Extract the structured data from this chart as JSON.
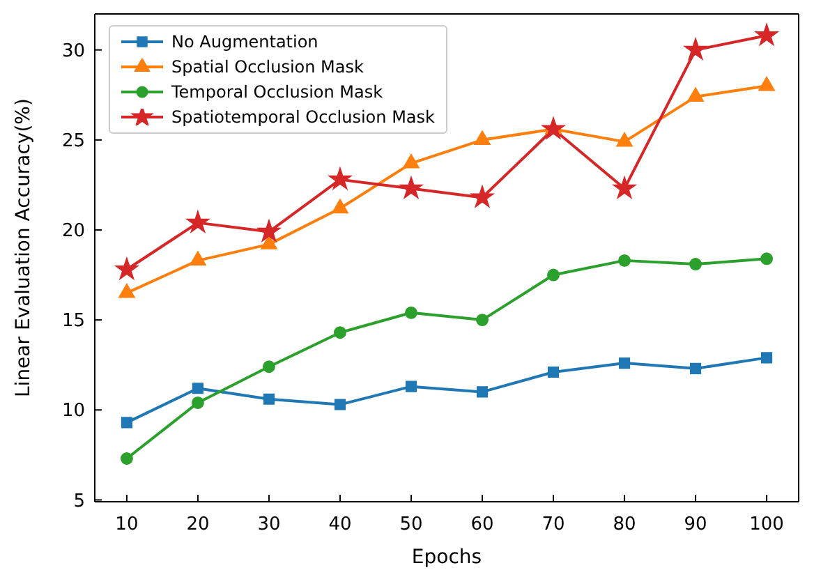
{
  "chart_data": {
    "type": "line",
    "xlabel": "Epochs",
    "ylabel": "Linear Evaluation Accuracy(%)",
    "x": [
      10,
      20,
      30,
      40,
      50,
      60,
      70,
      80,
      90,
      100
    ],
    "xlim": [
      5.5,
      104.5
    ],
    "xticks": [
      10,
      20,
      30,
      40,
      50,
      60,
      70,
      80,
      90,
      100
    ],
    "ylim": [
      4.9,
      32
    ],
    "yticks": [
      5,
      10,
      15,
      20,
      25,
      30
    ],
    "grid": false,
    "legend": "top left",
    "series": [
      {
        "name": "No Augmentation",
        "color": "#1f77b4",
        "marker": "square",
        "values": [
          9.3,
          11.2,
          10.6,
          10.3,
          11.3,
          11.0,
          12.1,
          12.6,
          12.3,
          12.9
        ]
      },
      {
        "name": "Spatial Occlusion Mask",
        "color": "#ff7f0e",
        "marker": "triangle",
        "values": [
          16.5,
          18.3,
          19.2,
          21.2,
          23.7,
          25.0,
          25.6,
          24.9,
          27.4,
          28.0
        ]
      },
      {
        "name": "Temporal Occlusion Mask",
        "color": "#2ca02c",
        "marker": "circle",
        "values": [
          7.3,
          10.4,
          12.4,
          14.3,
          15.4,
          15.0,
          17.5,
          18.3,
          18.1,
          18.4
        ]
      },
      {
        "name": "Spatiotemporal Occlusion Mask",
        "color": "#d62728",
        "marker": "star",
        "values": [
          17.8,
          20.4,
          19.9,
          22.8,
          22.3,
          21.8,
          25.6,
          22.3,
          30.0,
          30.8
        ]
      }
    ]
  }
}
